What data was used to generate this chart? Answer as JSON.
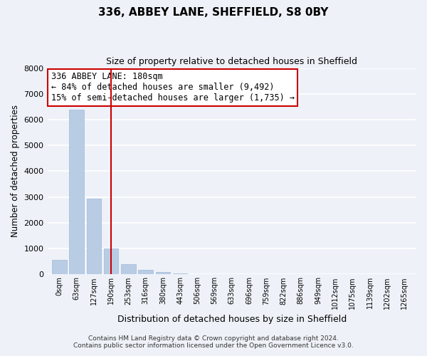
{
  "title": "336, ABBEY LANE, SHEFFIELD, S8 0BY",
  "subtitle": "Size of property relative to detached houses in Sheffield",
  "xlabel": "Distribution of detached houses by size in Sheffield",
  "ylabel": "Number of detached properties",
  "bar_labels": [
    "0sqm",
    "63sqm",
    "127sqm",
    "190sqm",
    "253sqm",
    "316sqm",
    "380sqm",
    "443sqm",
    "506sqm",
    "569sqm",
    "633sqm",
    "696sqm",
    "759sqm",
    "822sqm",
    "886sqm",
    "949sqm",
    "1012sqm",
    "1075sqm",
    "1139sqm",
    "1202sqm",
    "1265sqm"
  ],
  "bar_values": [
    560,
    6380,
    2950,
    1000,
    390,
    185,
    90,
    50,
    0,
    0,
    0,
    0,
    0,
    0,
    0,
    0,
    0,
    0,
    0,
    0,
    0
  ],
  "bar_color": "#b8cce4",
  "bar_edge_color": "#a0b8d8",
  "vline_x": 3,
  "vline_color": "#cc0000",
  "annotation_title": "336 ABBEY LANE: 180sqm",
  "annotation_line1": "← 84% of detached houses are smaller (9,492)",
  "annotation_line2": "15% of semi-detached houses are larger (1,735) →",
  "annotation_box_color": "#cc0000",
  "ylim": [
    0,
    8000
  ],
  "yticks": [
    0,
    1000,
    2000,
    3000,
    4000,
    5000,
    6000,
    7000,
    8000
  ],
  "footer_line1": "Contains HM Land Registry data © Crown copyright and database right 2024.",
  "footer_line2": "Contains public sector information licensed under the Open Government Licence v3.0.",
  "bg_color": "#eef2f8",
  "grid_color": "#ffffff"
}
